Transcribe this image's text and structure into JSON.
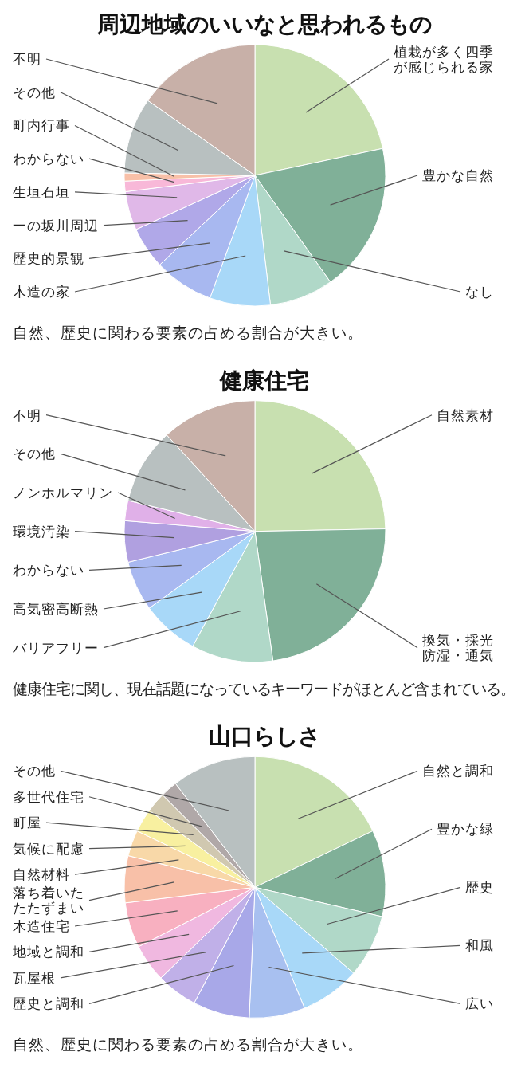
{
  "chart_data": [
    {
      "type": "pie",
      "title": "周辺地域のいいなと思われるもの",
      "annotations": [
        "自然、歴史に関わる要素の占める割合が大きい。"
      ],
      "categories": [
        "植栽が多く四季が感じられる家",
        "豊かな自然",
        "なし",
        "木造の家",
        "歴史的景観",
        "一の坂川周辺",
        "生垣石垣",
        "わからない",
        "町内行事",
        "その他",
        "不明"
      ],
      "values": [
        21.7,
        18.5,
        7.9,
        7.5,
        7.4,
        5.2,
        4.8,
        1.3,
        1.0,
        9.4,
        15.3
      ],
      "colors": [
        "#c8e0b0",
        "#80b098",
        "#b0d8c8",
        "#a8d8f8",
        "#a8b8f0",
        "#b0a8e8",
        "#e0b8e8",
        "#f8b8d8",
        "#f8c0a8",
        "#b8c0c0",
        "#c8b0a8"
      ]
    },
    {
      "type": "pie",
      "title": "健康住宅",
      "annotations": [
        "健康住宅に関し、現在話題になっているキーワードがほとんど含まれている。"
      ],
      "categories": [
        "自然素材",
        "換気・採光防湿・通気",
        "バリアフリー",
        "高気密高断熱",
        "わからない",
        "環境汚染",
        "ノンホルマリン",
        "その他",
        "不明"
      ],
      "values": [
        24.7,
        23.1,
        10.1,
        7.1,
        6.2,
        5.1,
        2.5,
        9.4,
        11.8
      ],
      "colors": [
        "#c8e0b0",
        "#80b098",
        "#b0d8c8",
        "#a8d8f8",
        "#a8b8f0",
        "#b0a0e0",
        "#e0b0e8",
        "#b8c0c0",
        "#c8b0a8"
      ]
    },
    {
      "type": "pie",
      "title": "山口らしさ",
      "annotations": [
        "自然、歴史に関わる要素の占める割合が大きい。"
      ],
      "categories": [
        "自然と調和",
        "豊かな緑",
        "歴史",
        "和風",
        "広い",
        "歴史と調和",
        "瓦屋根",
        "地域と調和",
        "木造住宅",
        "落ち着いたたたずまい",
        "自然材料",
        "気候に配慮",
        "町屋",
        "多世代住宅",
        "その他"
      ],
      "values": [
        17.9,
        10.7,
        7.8,
        7.4,
        6.9,
        7.0,
        5.1,
        4.7,
        5.6,
        5.8,
        3.2,
        2.9,
        2.5,
        2.1,
        10.4
      ],
      "colors": [
        "#c8e0b0",
        "#80b098",
        "#b0d8c8",
        "#a8d8f8",
        "#a8c0f0",
        "#a8a8e8",
        "#c0b0e8",
        "#f0b8e0",
        "#f8b0c0",
        "#f8c0a8",
        "#f8d8a8",
        "#f8f0a0",
        "#d0c8b0",
        "#b0a8a8",
        "#b8c0c0"
      ]
    }
  ]
}
